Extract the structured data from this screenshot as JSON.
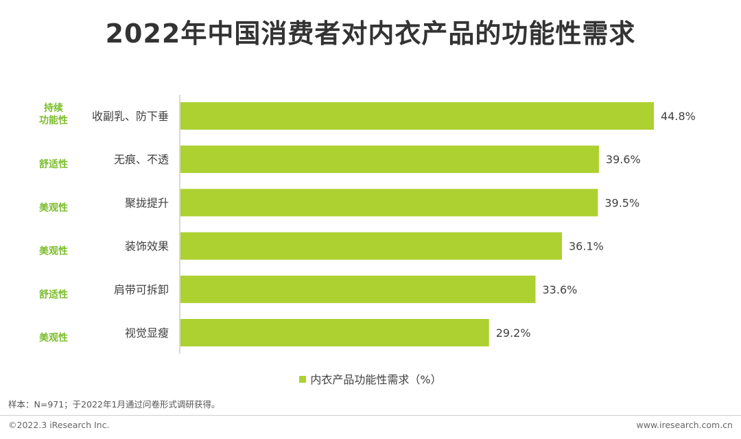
{
  "title": "2022年中国消费者对内衣产品的功能性需求",
  "colors": {
    "bar": "#acd131",
    "group_label": "#7cbd2c",
    "axis": "#b0b0b0"
  },
  "legend": {
    "label": "内衣产品功能性需求（%）"
  },
  "note": "样本：N=971；于2022年1月通过问卷形式调研获得。",
  "footer": {
    "left": "©2022.3 iResearch Inc.",
    "right": "www.iresearch.com.cn"
  },
  "chart_data": {
    "type": "bar",
    "orientation": "horizontal",
    "title": "2022年中国消费者对内衣产品的功能性需求",
    "categories": [
      "收副乳、防下垂",
      "无痕、不透",
      "聚拢提升",
      "装饰效果",
      "肩带可拆卸",
      "视觉显瘦"
    ],
    "groups": [
      [
        "持续",
        "功能性"
      ],
      [
        "舒适性"
      ],
      [
        "美观性"
      ],
      [
        "美观性"
      ],
      [
        "舒适性"
      ],
      [
        "美观性"
      ]
    ],
    "series": [
      {
        "name": "内衣产品功能性需求（%）",
        "values": [
          44.8,
          39.6,
          39.5,
          36.1,
          33.6,
          29.2
        ]
      }
    ],
    "value_labels": [
      "44.8%",
      "39.6%",
      "39.5%",
      "36.1%",
      "33.6%",
      "29.2%"
    ],
    "xlim": [
      0,
      45
    ],
    "grid": false,
    "legend_position": "bottom"
  }
}
